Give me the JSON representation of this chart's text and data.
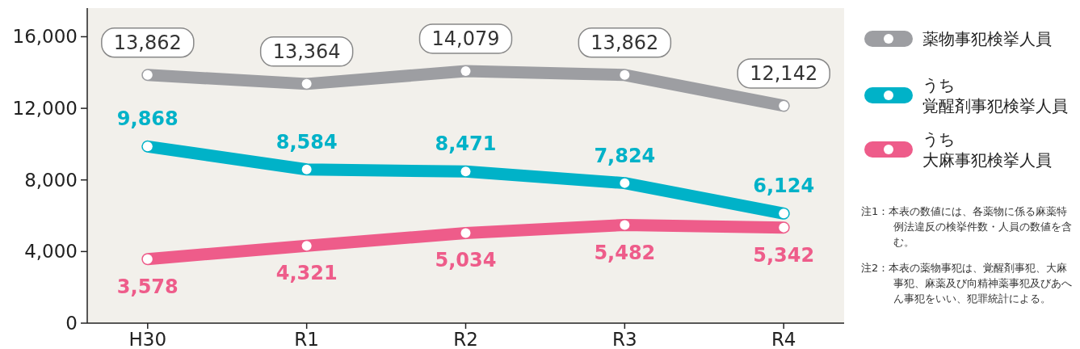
{
  "chart_data": {
    "type": "line",
    "categories": [
      "H30",
      "R1",
      "R2",
      "R3",
      "R4"
    ],
    "ylim": [
      0,
      17600
    ],
    "yticks": [
      {
        "value": 0,
        "label": "0"
      },
      {
        "value": 4000,
        "label": "4,000"
      },
      {
        "value": 8000,
        "label": "8,000"
      },
      {
        "value": 12000,
        "label": "12,000"
      },
      {
        "value": 16000,
        "label": "16,000"
      }
    ],
    "series": [
      {
        "name": "薬物事犯検挙人員",
        "color": "#9d9ea2",
        "values": [
          13862,
          13364,
          14079,
          13862,
          12142
        ],
        "value_labels": [
          "13,862",
          "13,364",
          "14,079",
          "13,862",
          "12,142"
        ]
      },
      {
        "name": "うち覚醒剤事犯検挙人員",
        "color": "#00b2c8",
        "values": [
          9868,
          8584,
          8471,
          7824,
          6124
        ],
        "value_labels": [
          "9,868",
          "8,584",
          "8,471",
          "7,824",
          "6,124"
        ]
      },
      {
        "name": "うち大麻事犯検挙人員",
        "color": "#ee5c8a",
        "values": [
          3578,
          4321,
          5034,
          5482,
          5342
        ],
        "value_labels": [
          "3,578",
          "4,321",
          "5,034",
          "5,482",
          "5,342"
        ]
      }
    ],
    "marker": "circle",
    "grid": false,
    "legend": "right",
    "annotations": [
      "注1：本表の数値には、各薬物に係る麻薬特例法違反の検挙件数・人員の数値を含む。",
      "注2：本表の薬物事犯は、覚醒剤事犯、大麻事犯、麻薬及び向精神薬事犯及びあへん事犯をいい、犯罪統計による。"
    ]
  }
}
